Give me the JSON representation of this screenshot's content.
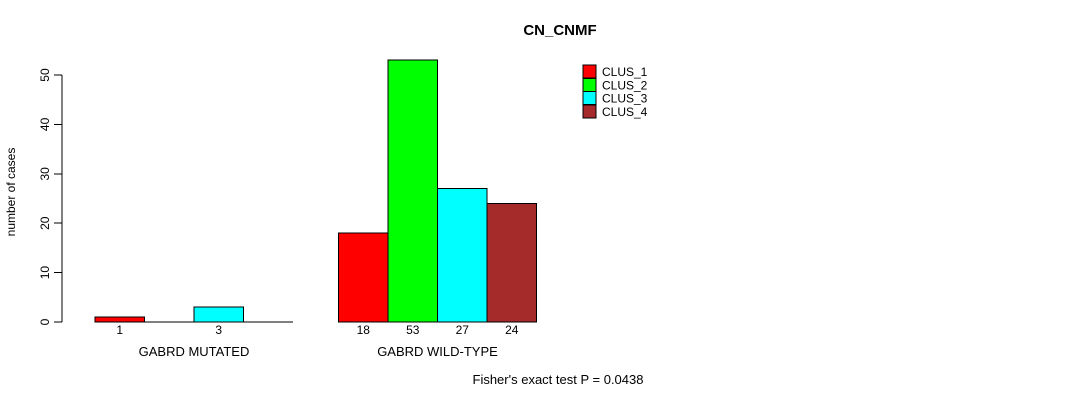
{
  "chart_data": {
    "type": "bar",
    "title": "CN_CNMF",
    "xlabel": "",
    "ylabel": "number of cases",
    "ylim": [
      0,
      50
    ],
    "yticks": [
      0,
      10,
      20,
      30,
      40,
      50
    ],
    "grid": false,
    "legend_position": "top-right",
    "categories": [
      "GABRD MUTATED",
      "GABRD WILD-TYPE"
    ],
    "series": [
      {
        "name": "CLUS_1",
        "color": "#FF0000",
        "values": [
          1,
          18
        ]
      },
      {
        "name": "CLUS_2",
        "color": "#00FF00",
        "values": [
          0,
          53
        ]
      },
      {
        "name": "CLUS_3",
        "color": "#00FFFF",
        "values": [
          3,
          27
        ]
      },
      {
        "name": "CLUS_4",
        "color": "#A52A2A",
        "values": [
          0,
          24
        ]
      }
    ],
    "bar_value_labels": {
      "GABRD MUTATED": [
        1,
        null,
        3,
        null
      ],
      "GABRD WILD-TYPE": [
        18,
        53,
        27,
        24
      ]
    }
  },
  "annotation": {
    "text": "Fisher's exact test P = 0.0438"
  },
  "colors": {
    "background": "#FFFFFF",
    "axis": "#000000",
    "bar_border": "#000000",
    "text": "#000000"
  }
}
